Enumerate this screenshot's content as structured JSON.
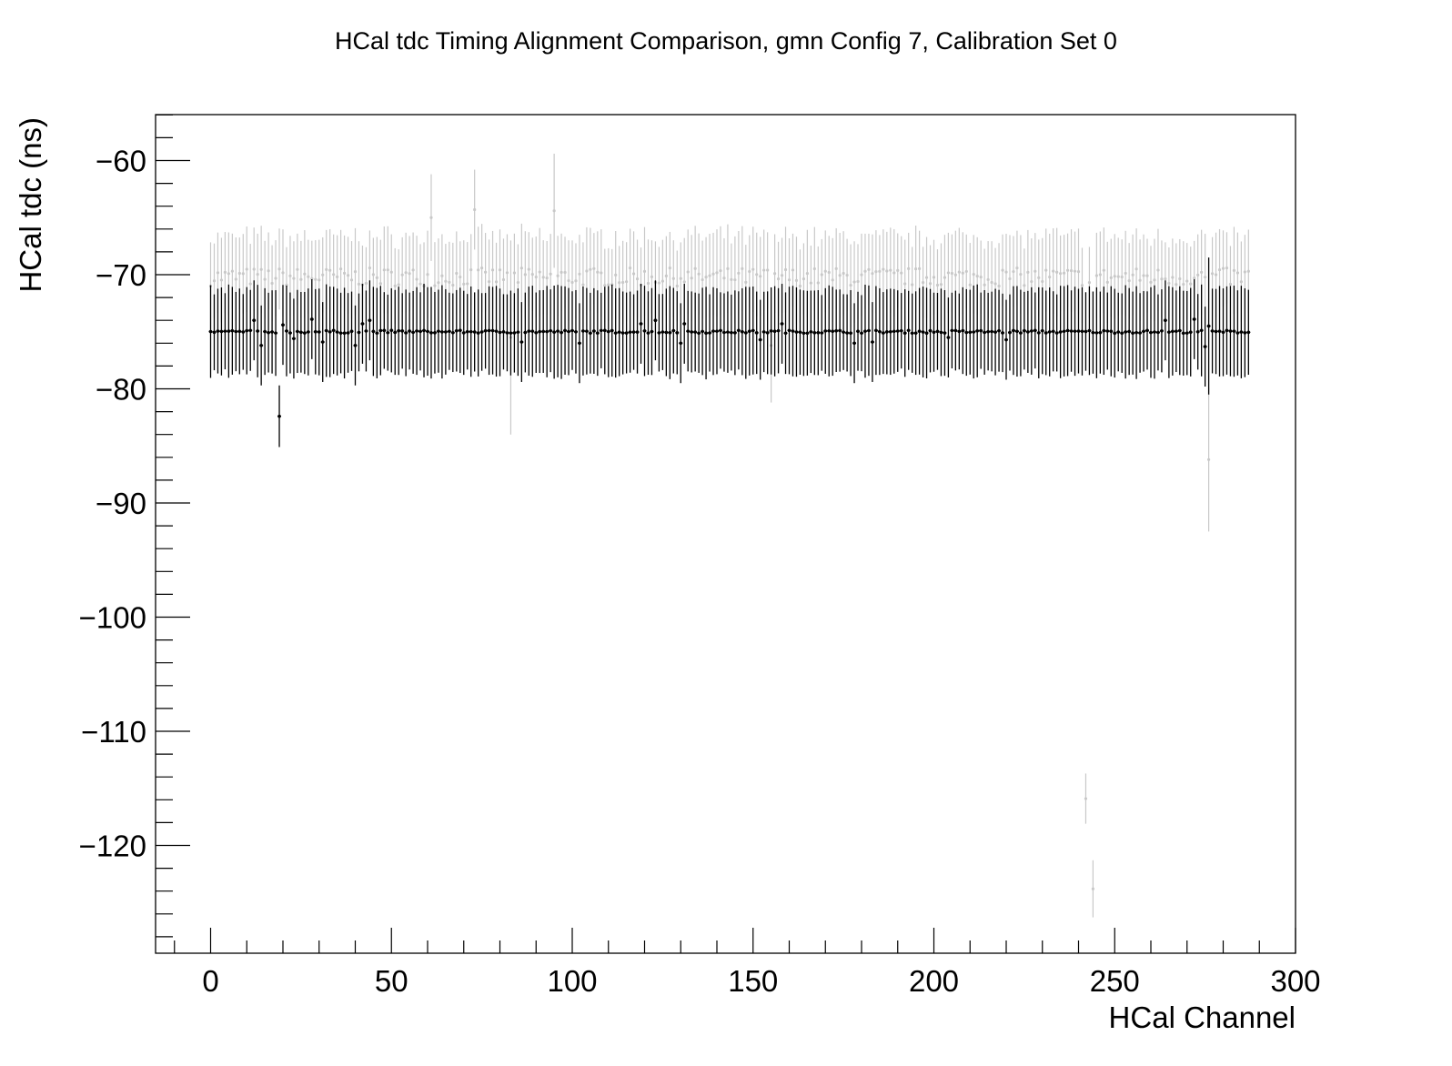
{
  "chart_data": {
    "type": "scatter",
    "title": "HCal tdc Timing Alignment Comparison, gmn Config 7, Calibration Set 0",
    "xlabel": "HCal Channel",
    "ylabel": "HCal tdc (ns)",
    "xlim": [
      -10,
      303
    ],
    "ylim": [
      -129.5,
      -56
    ],
    "xticks": [
      0,
      50,
      100,
      150,
      200,
      250,
      300
    ],
    "xtick_labels": [
      "0",
      "50",
      "100",
      "150",
      "200",
      "250",
      "300"
    ],
    "yticks": [
      -60,
      -70,
      -80,
      -90,
      -100,
      -110,
      -120
    ],
    "ytick_labels": [
      "−60",
      "−70",
      "−80",
      "−90",
      "−100",
      "−110",
      "−120"
    ],
    "grid": false,
    "legend": "none",
    "series": [
      {
        "color": "#c8c8c8",
        "n_channels": 288,
        "baseline_mean": -70.2,
        "baseline_err": 3.5,
        "outliers": [
          {
            "x": 61,
            "y": -65.0,
            "err": 3.8
          },
          {
            "x": 73,
            "y": -64.3,
            "err": 3.5
          },
          {
            "x": 83,
            "y": -75.5,
            "err": 8.5
          },
          {
            "x": 95,
            "y": -64.4,
            "err": 5.0
          },
          {
            "x": 155,
            "y": -76.2,
            "err": 5.0
          },
          {
            "x": 242,
            "y": -115.9,
            "err": 2.2
          },
          {
            "x": 244,
            "y": -123.8,
            "err": 2.5
          },
          {
            "x": 276,
            "y": -86.2,
            "err": 6.3
          }
        ]
      },
      {
        "color": "#000000",
        "n_channels": 288,
        "baseline_mean": -75.0,
        "baseline_err": 3.7,
        "outliers": [
          {
            "x": 12,
            "y": -74.0,
            "err": 3.5
          },
          {
            "x": 14,
            "y": -76.2,
            "err": 3.5
          },
          {
            "x": 19,
            "y": -82.4,
            "err": 2.7
          },
          {
            "x": 20,
            "y": -74.4,
            "err": 3.5
          },
          {
            "x": 23,
            "y": -75.6,
            "err": 3.5
          },
          {
            "x": 28,
            "y": -73.9,
            "err": 3.5
          },
          {
            "x": 31,
            "y": -75.9,
            "err": 3.5
          },
          {
            "x": 40,
            "y": -76.2,
            "err": 3.5
          },
          {
            "x": 42,
            "y": -74.3,
            "err": 3.5
          },
          {
            "x": 44,
            "y": -74.0,
            "err": 3.5
          },
          {
            "x": 86,
            "y": -75.9,
            "err": 3.5
          },
          {
            "x": 102,
            "y": -76.0,
            "err": 3.5
          },
          {
            "x": 119,
            "y": -74.3,
            "err": 3.5
          },
          {
            "x": 123,
            "y": -74.0,
            "err": 3.5
          },
          {
            "x": 130,
            "y": -76.0,
            "err": 3.5
          },
          {
            "x": 131,
            "y": -74.3,
            "err": 3.5
          },
          {
            "x": 152,
            "y": -75.7,
            "err": 3.5
          },
          {
            "x": 158,
            "y": -74.3,
            "err": 3.5
          },
          {
            "x": 178,
            "y": -76.0,
            "err": 3.5
          },
          {
            "x": 183,
            "y": -75.9,
            "err": 3.5
          },
          {
            "x": 204,
            "y": -75.5,
            "err": 3.5
          },
          {
            "x": 220,
            "y": -75.7,
            "err": 3.5
          },
          {
            "x": 264,
            "y": -74.0,
            "err": 3.5
          },
          {
            "x": 272,
            "y": -73.9,
            "err": 3.5
          },
          {
            "x": 275,
            "y": -76.3,
            "err": 3.5
          },
          {
            "x": 276,
            "y": -74.5,
            "err": 6.0
          }
        ]
      }
    ]
  }
}
